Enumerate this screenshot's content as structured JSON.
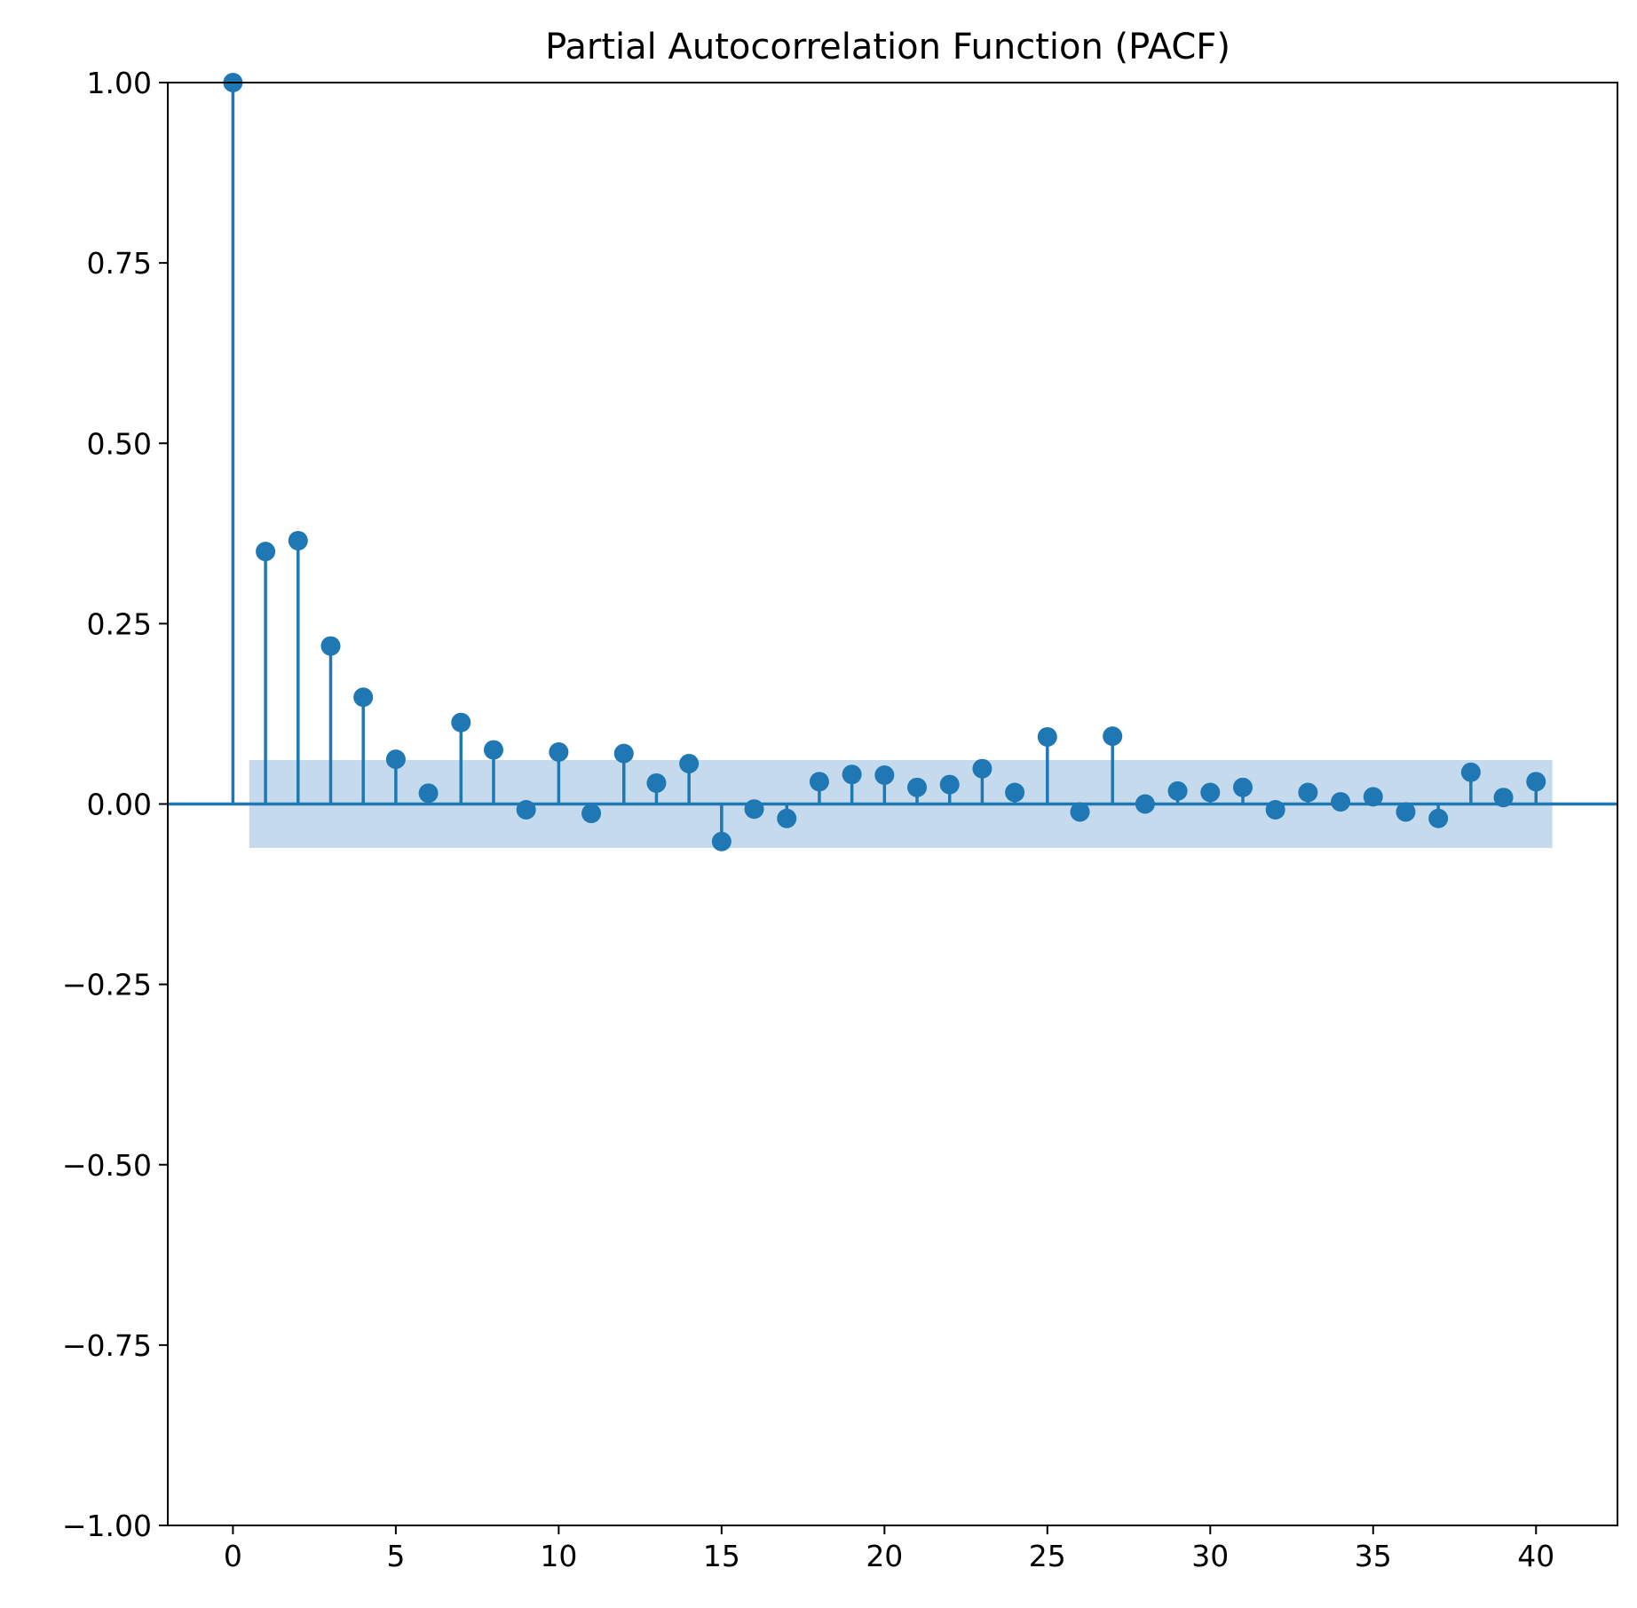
{
  "chart_data": {
    "type": "stem",
    "title": "Partial Autocorrelation Function (PACF)",
    "xlabel": "",
    "ylabel": "",
    "xlim": [
      -2,
      42.5
    ],
    "ylim": [
      -1.0,
      1.0
    ],
    "x_ticks": [
      0,
      5,
      10,
      15,
      20,
      25,
      30,
      35,
      40
    ],
    "y_ticks": [
      -1.0,
      -0.75,
      -0.5,
      -0.25,
      0.0,
      0.25,
      0.5,
      0.75,
      1.0
    ],
    "x_tick_labels": [
      "0",
      "5",
      "10",
      "15",
      "20",
      "25",
      "30",
      "35",
      "40"
    ],
    "y_tick_labels": [
      "−1.00",
      "−0.75",
      "−0.50",
      "−0.25",
      "0.00",
      "0.25",
      "0.50",
      "0.75",
      "1.00"
    ],
    "confidence_band": {
      "x_range": [
        0.5,
        40.5
      ],
      "upper": 0.061,
      "lower": -0.061
    },
    "grid": false,
    "legend": "none",
    "colors": {
      "stem": "#1f77b4",
      "band": "#c5dbed",
      "axes": "#000000"
    },
    "lags": [
      0,
      1,
      2,
      3,
      4,
      5,
      6,
      7,
      8,
      9,
      10,
      11,
      12,
      13,
      14,
      15,
      16,
      17,
      18,
      19,
      20,
      21,
      22,
      23,
      24,
      25,
      26,
      27,
      28,
      29,
      30,
      31,
      32,
      33,
      34,
      35,
      36,
      37,
      38,
      39,
      40
    ],
    "values": [
      1.0,
      0.35,
      0.365,
      0.219,
      0.148,
      0.062,
      0.015,
      0.113,
      0.075,
      -0.008,
      0.072,
      -0.013,
      0.07,
      0.029,
      0.056,
      -0.052,
      -0.007,
      -0.02,
      0.031,
      0.041,
      0.04,
      0.023,
      0.027,
      0.049,
      0.016,
      0.093,
      -0.011,
      0.094,
      0.0,
      0.018,
      0.016,
      0.023,
      -0.008,
      0.016,
      0.003,
      0.01,
      -0.011,
      -0.02,
      0.044,
      0.009,
      0.031
    ]
  }
}
